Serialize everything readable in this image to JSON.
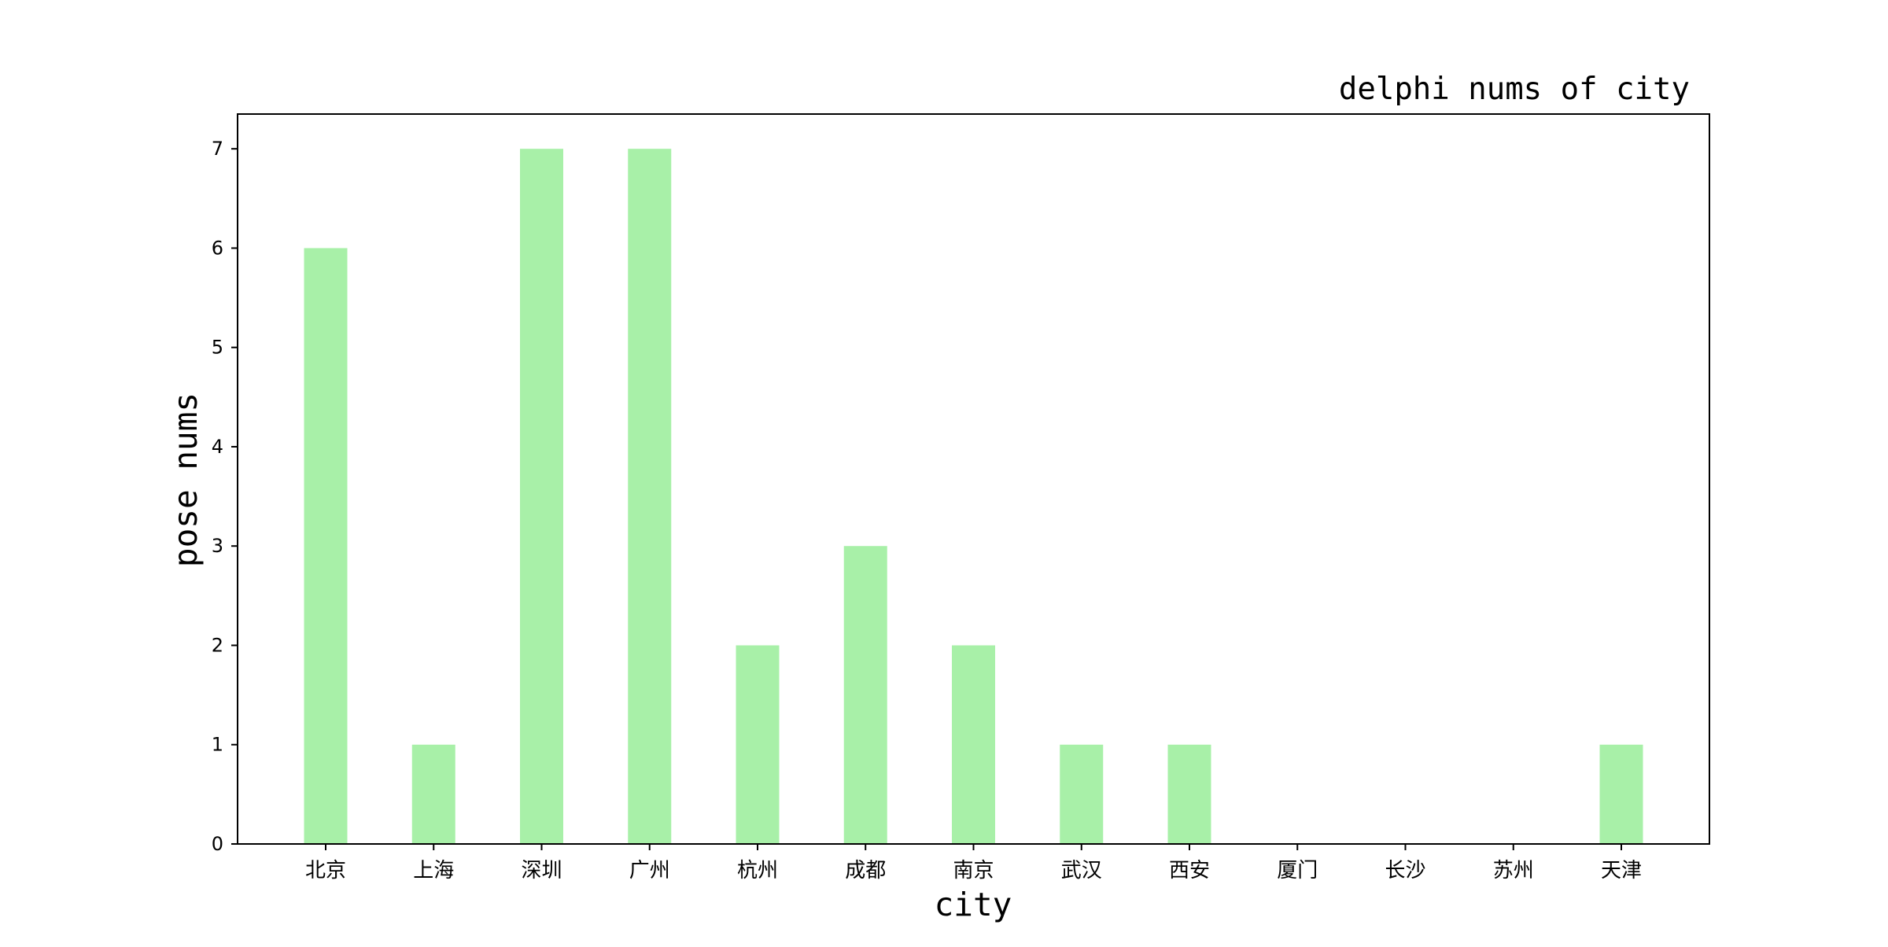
{
  "chart_data": {
    "type": "bar",
    "title": "delphi nums of city",
    "xlabel": "city",
    "ylabel": "pose nums",
    "categories": [
      "北京",
      "上海",
      "深圳",
      "广州",
      "杭州",
      "成都",
      "南京",
      "武汉",
      "西安",
      "厦门",
      "长沙",
      "苏州",
      "天津"
    ],
    "values": [
      6,
      1,
      7,
      7,
      2,
      3,
      2,
      1,
      1,
      0,
      0,
      0,
      1
    ],
    "ylim": [
      0,
      7.35
    ],
    "yticks": [
      0,
      1,
      2,
      3,
      4,
      5,
      6,
      7
    ],
    "grid": false,
    "legend": "none",
    "colors": {
      "bar": "#a8f0a8",
      "axis": "#000000",
      "text": "#000000"
    }
  }
}
